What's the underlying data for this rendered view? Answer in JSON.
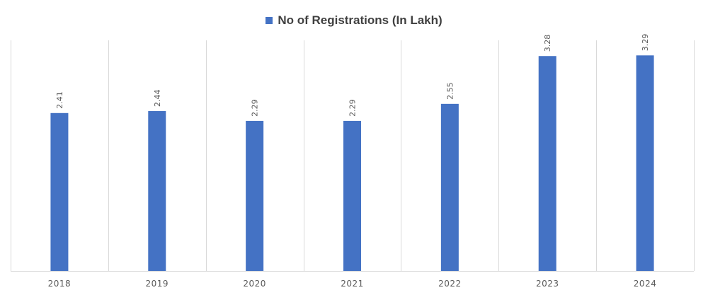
{
  "chart_data": {
    "type": "bar",
    "title": "",
    "xlabel": "",
    "ylabel": "",
    "categories": [
      "2018",
      "2019",
      "2020",
      "2021",
      "2022",
      "2023",
      "2024"
    ],
    "series": [
      {
        "name": "No of Registrations (In Lakh)",
        "values": [
          2.41,
          2.44,
          2.29,
          2.29,
          2.55,
          3.28,
          3.29
        ],
        "data_labels": [
          "2.41",
          "2.44",
          "2.29",
          "2.29",
          "2.55",
          "3.28",
          "3.29"
        ],
        "color": "#4472C4"
      }
    ],
    "ylim": [
      0,
      3.52
    ],
    "grid": "vertical category separators",
    "legend_position": "top-center",
    "data_label_orientation": "rotated-vertical"
  }
}
